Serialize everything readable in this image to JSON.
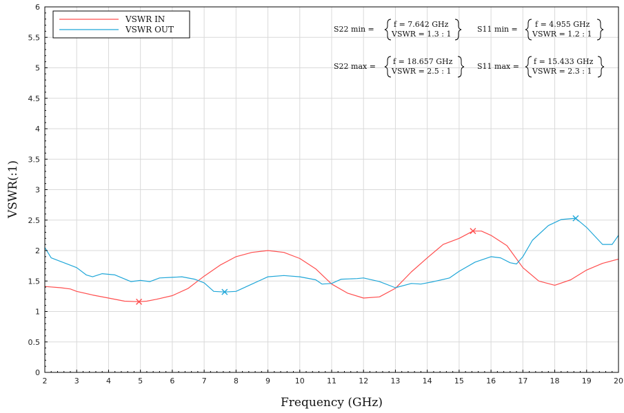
{
  "chart_data": {
    "type": "line",
    "title": "",
    "xlabel": "Frequency (GHz)",
    "ylabel": "VSWR(:1)",
    "xlim": [
      2,
      20
    ],
    "ylim": [
      0,
      6
    ],
    "x_ticks": [
      "2",
      "3",
      "4",
      "5",
      "6",
      "7",
      "8",
      "9",
      "10",
      "11",
      "12",
      "13",
      "14",
      "15",
      "16",
      "17",
      "18",
      "19",
      "20"
    ],
    "y_ticks": [
      "0",
      "0.5",
      "1",
      "1.5",
      "2",
      "2.5",
      "3",
      "3.5",
      "4",
      "4.5",
      "5",
      "5.5",
      "6"
    ],
    "grid": true,
    "legend_position": "top-left",
    "series": [
      {
        "name": "VSWR IN",
        "color": "#ff4d4d",
        "points": [
          [
            2.0,
            1.41
          ],
          [
            2.5,
            1.39
          ],
          [
            2.8,
            1.37
          ],
          [
            3.0,
            1.33
          ],
          [
            3.5,
            1.27
          ],
          [
            4.0,
            1.22
          ],
          [
            4.5,
            1.17
          ],
          [
            4.955,
            1.16
          ],
          [
            5.2,
            1.17
          ],
          [
            5.5,
            1.2
          ],
          [
            6.0,
            1.26
          ],
          [
            6.5,
            1.38
          ],
          [
            7.0,
            1.58
          ],
          [
            7.5,
            1.76
          ],
          [
            8.0,
            1.9
          ],
          [
            8.5,
            1.97
          ],
          [
            9.0,
            2.0
          ],
          [
            9.5,
            1.97
          ],
          [
            10.0,
            1.87
          ],
          [
            10.5,
            1.7
          ],
          [
            11.0,
            1.45
          ],
          [
            11.5,
            1.3
          ],
          [
            12.0,
            1.22
          ],
          [
            12.5,
            1.24
          ],
          [
            13.0,
            1.38
          ],
          [
            13.5,
            1.65
          ],
          [
            14.0,
            1.88
          ],
          [
            14.5,
            2.1
          ],
          [
            15.0,
            2.2
          ],
          [
            15.433,
            2.32
          ],
          [
            15.7,
            2.32
          ],
          [
            16.0,
            2.25
          ],
          [
            16.5,
            2.08
          ],
          [
            17.0,
            1.72
          ],
          [
            17.5,
            1.5
          ],
          [
            18.0,
            1.43
          ],
          [
            18.5,
            1.52
          ],
          [
            19.0,
            1.68
          ],
          [
            19.5,
            1.79
          ],
          [
            20.0,
            1.86
          ]
        ]
      },
      {
        "name": "VSWR OUT",
        "color": "#1ea6d8",
        "points": [
          [
            2.0,
            2.05
          ],
          [
            2.2,
            1.88
          ],
          [
            2.5,
            1.82
          ],
          [
            3.0,
            1.72
          ],
          [
            3.3,
            1.6
          ],
          [
            3.5,
            1.57
          ],
          [
            3.8,
            1.62
          ],
          [
            4.2,
            1.6
          ],
          [
            4.7,
            1.49
          ],
          [
            5.0,
            1.51
          ],
          [
            5.3,
            1.49
          ],
          [
            5.6,
            1.55
          ],
          [
            6.0,
            1.56
          ],
          [
            6.3,
            1.57
          ],
          [
            6.7,
            1.53
          ],
          [
            7.0,
            1.47
          ],
          [
            7.3,
            1.33
          ],
          [
            7.642,
            1.32
          ],
          [
            8.0,
            1.33
          ],
          [
            8.5,
            1.45
          ],
          [
            9.0,
            1.57
          ],
          [
            9.5,
            1.59
          ],
          [
            10.0,
            1.57
          ],
          [
            10.5,
            1.52
          ],
          [
            10.7,
            1.45
          ],
          [
            11.0,
            1.46
          ],
          [
            11.3,
            1.53
          ],
          [
            11.8,
            1.54
          ],
          [
            12.0,
            1.55
          ],
          [
            12.5,
            1.49
          ],
          [
            13.0,
            1.39
          ],
          [
            13.5,
            1.46
          ],
          [
            13.8,
            1.45
          ],
          [
            14.2,
            1.49
          ],
          [
            14.7,
            1.55
          ],
          [
            15.0,
            1.66
          ],
          [
            15.5,
            1.81
          ],
          [
            16.0,
            1.9
          ],
          [
            16.3,
            1.88
          ],
          [
            16.6,
            1.8
          ],
          [
            16.8,
            1.78
          ],
          [
            17.0,
            1.9
          ],
          [
            17.3,
            2.17
          ],
          [
            17.8,
            2.41
          ],
          [
            18.2,
            2.51
          ],
          [
            18.657,
            2.53
          ],
          [
            19.0,
            2.38
          ],
          [
            19.5,
            2.1
          ],
          [
            19.8,
            2.1
          ],
          [
            20.0,
            2.25
          ]
        ]
      }
    ],
    "markers": [
      {
        "series": "VSWR IN",
        "x": 4.955,
        "y": 1.16,
        "color": "#ff4d4d"
      },
      {
        "series": "VSWR IN",
        "x": 15.433,
        "y": 2.32,
        "color": "#ff4d4d"
      },
      {
        "series": "VSWR OUT",
        "x": 7.642,
        "y": 1.32,
        "color": "#1ea6d8"
      },
      {
        "series": "VSWR OUT",
        "x": 18.657,
        "y": 2.53,
        "color": "#1ea6d8"
      }
    ],
    "annotations": [
      {
        "label": "S22 min =",
        "line1": "f = 7.642 GHz",
        "line2": "VSWR = 1.3 : 1"
      },
      {
        "label": "S11 min =",
        "line1": "f = 4.955 GHz",
        "line2": "VSWR = 1.2 : 1"
      },
      {
        "label": "S22 max =",
        "line1": "f = 18.657 GHz",
        "line2": "VSWR = 2.5 : 1"
      },
      {
        "label": "S11 max =",
        "line1": "f = 15.433 GHz",
        "line2": "VSWR = 2.3 : 1"
      }
    ]
  }
}
